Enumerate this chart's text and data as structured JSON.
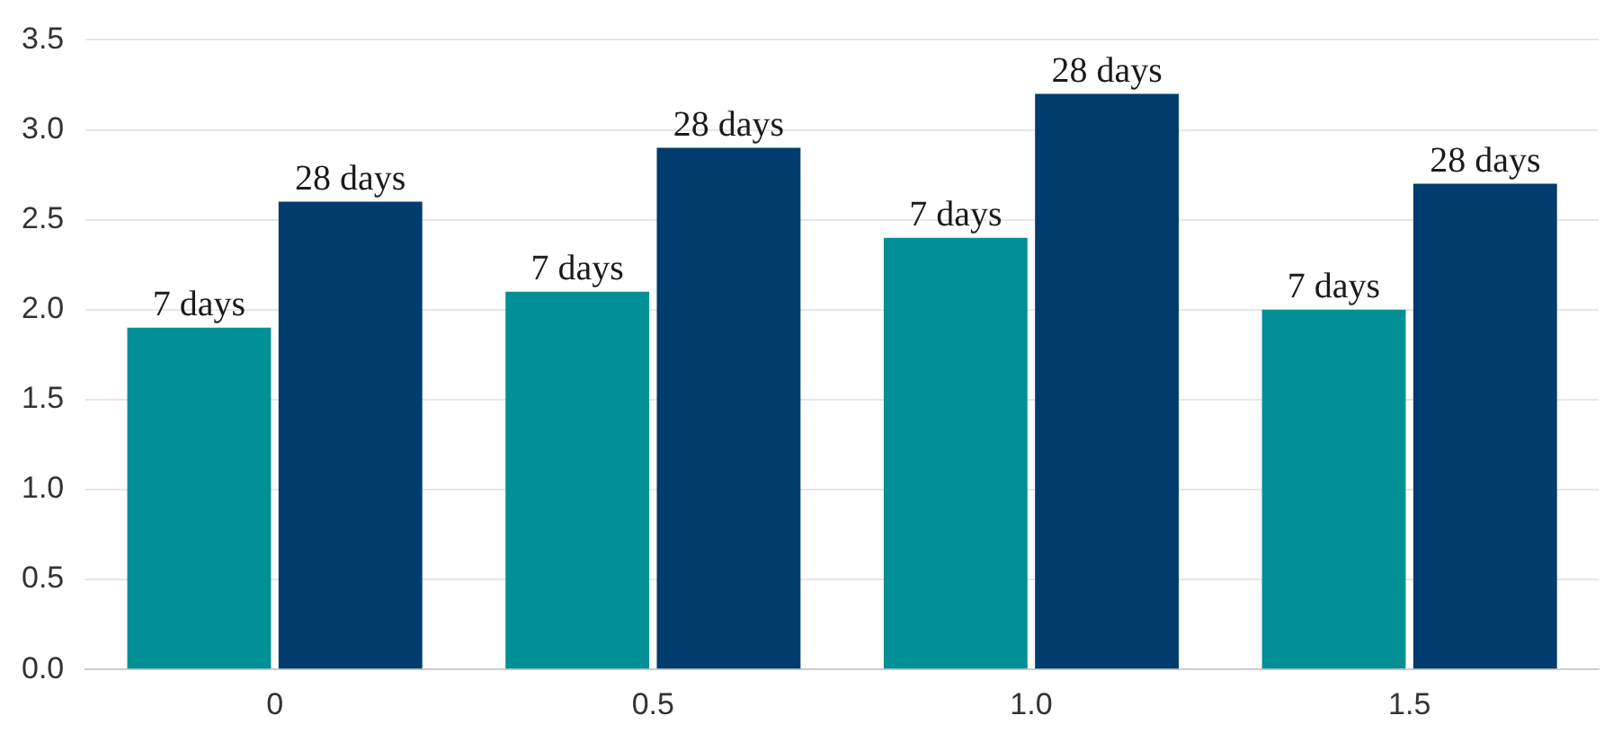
{
  "chart_data": {
    "type": "bar",
    "categories": [
      "0",
      "0.5",
      "1.0",
      "1.5"
    ],
    "series": [
      {
        "name": "7 days",
        "color": "#009096",
        "values": [
          1.9,
          2.1,
          2.4,
          2.0
        ]
      },
      {
        "name": "28 days",
        "color": "#003c6e",
        "values": [
          2.6,
          2.9,
          3.2,
          2.7
        ]
      }
    ],
    "ylim": [
      0,
      3.5
    ],
    "yticks": [
      {
        "value": 0,
        "label": "0.0"
      },
      0.5,
      {
        "value": 1,
        "label": "1.0"
      },
      1.5,
      {
        "value": 2,
        "label": "2.0"
      },
      2.5,
      {
        "value": 3,
        "label": "3.0"
      },
      3.5
    ],
    "grid": "y",
    "legend": false
  }
}
